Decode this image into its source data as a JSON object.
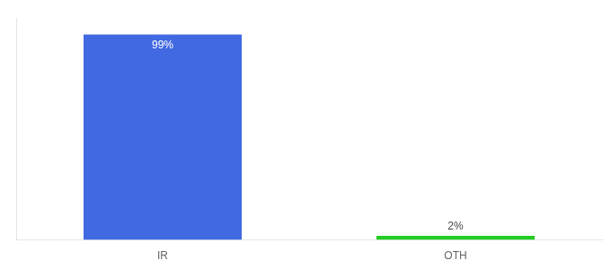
{
  "chart_data": {
    "type": "bar",
    "categories": [
      "IR",
      "OTH"
    ],
    "values": [
      99,
      2
    ],
    "value_labels": [
      "99%",
      "2%"
    ],
    "colors": [
      "#4169e1",
      "#22cc22"
    ],
    "ylim": [
      0,
      107
    ],
    "grid": false,
    "data_labels": true,
    "tick_labels": "x"
  }
}
